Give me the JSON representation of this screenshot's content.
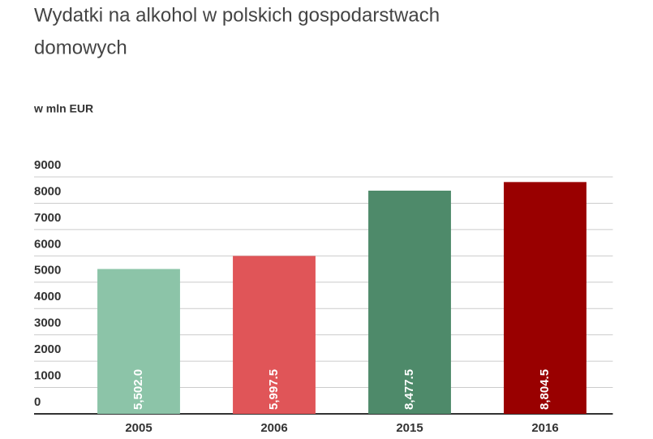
{
  "chart_data": {
    "type": "bar",
    "title_lines": [
      "Wydatki na alkohol w polskich gospodarstwach",
      "domowych"
    ],
    "subtitle": "w mln EUR",
    "categories": [
      "2005",
      "2006",
      "2015",
      "2016"
    ],
    "values": [
      5502.0,
      5997.5,
      8477.5,
      8804.5
    ],
    "value_labels": [
      "5,502.0",
      "5,997.5",
      "8,477.5",
      "8,804.5"
    ],
    "colors": [
      "#8cc4a8",
      "#e05558",
      "#4e8a6a",
      "#990000"
    ],
    "ylim": [
      0,
      9000
    ],
    "yticks": [
      0,
      1000,
      2000,
      3000,
      4000,
      5000,
      6000,
      7000,
      8000,
      9000
    ],
    "grid": true
  }
}
